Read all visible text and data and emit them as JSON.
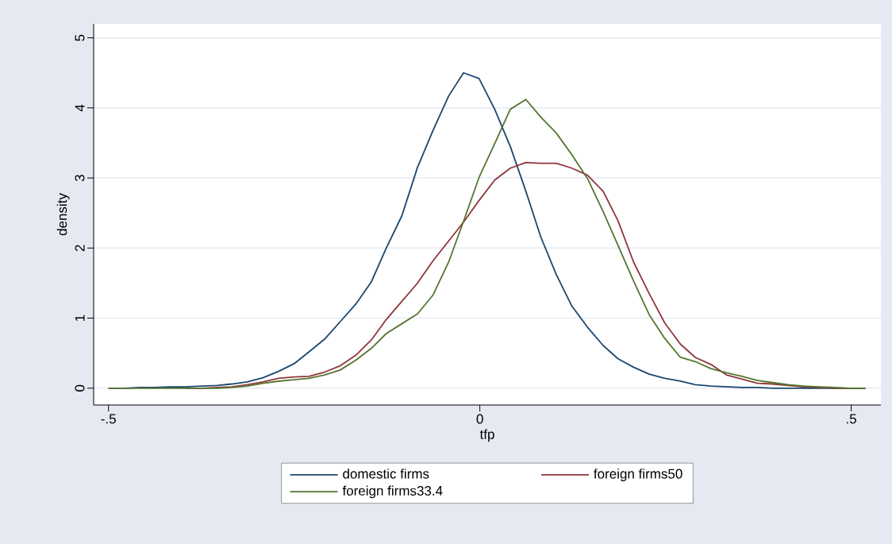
{
  "chart_data": {
    "type": "line",
    "xlabel": "tfp",
    "ylabel": "density",
    "x": [
      -0.5,
      -0.479,
      -0.458,
      -0.438,
      -0.417,
      -0.396,
      -0.375,
      -0.354,
      -0.334,
      -0.313,
      -0.292,
      -0.271,
      -0.25,
      -0.23,
      -0.209,
      -0.188,
      -0.167,
      -0.146,
      -0.126,
      -0.105,
      -0.084,
      -0.063,
      -0.042,
      -0.022,
      -0.001,
      0.02,
      0.041,
      0.062,
      0.082,
      0.103,
      0.124,
      0.145,
      0.166,
      0.186,
      0.207,
      0.228,
      0.249,
      0.27,
      0.29,
      0.311,
      0.332,
      0.353,
      0.374,
      0.394,
      0.415,
      0.436,
      0.457,
      0.478,
      0.498,
      0.519
    ],
    "series": [
      {
        "name": "domestic firms",
        "color": "#1a476f",
        "values": [
          0,
          0,
          0.01,
          0.01,
          0.02,
          0.02,
          0.03,
          0.04,
          0.06,
          0.09,
          0.15,
          0.24,
          0.35,
          0.52,
          0.7,
          0.95,
          1.2,
          1.52,
          2.0,
          2.46,
          3.15,
          3.68,
          4.17,
          4.5,
          4.42,
          3.98,
          3.45,
          2.81,
          2.16,
          1.62,
          1.17,
          0.87,
          0.61,
          0.42,
          0.3,
          0.2,
          0.14,
          0.1,
          0.05,
          0.03,
          0.02,
          0.01,
          0.01,
          0,
          0,
          0,
          0,
          0,
          0,
          0
        ]
      },
      {
        "name": "foreign firms50",
        "color": "#90353b",
        "values": [
          null,
          null,
          null,
          null,
          null,
          0,
          0,
          0.01,
          0.02,
          0.05,
          0.09,
          0.14,
          0.16,
          0.17,
          0.23,
          0.32,
          0.47,
          0.69,
          0.98,
          1.24,
          1.5,
          1.82,
          2.1,
          2.37,
          2.68,
          2.97,
          3.14,
          3.22,
          3.21,
          3.21,
          3.14,
          3.04,
          2.81,
          2.39,
          1.8,
          1.35,
          0.93,
          0.63,
          0.44,
          0.34,
          0.19,
          0.13,
          0.07,
          0.06,
          0.04,
          0.02,
          0.01,
          0,
          0,
          0
        ]
      },
      {
        "name": "foreign firms33.4",
        "color": "#55752f",
        "values": [
          0,
          0,
          0,
          0,
          0,
          0,
          0,
          0,
          0.01,
          0.03,
          0.07,
          0.1,
          0.12,
          0.14,
          0.19,
          0.26,
          0.4,
          0.57,
          0.78,
          0.92,
          1.06,
          1.33,
          1.8,
          2.38,
          3.01,
          3.49,
          3.98,
          4.12,
          3.87,
          3.64,
          3.33,
          2.99,
          2.52,
          2.04,
          1.53,
          1.05,
          0.71,
          0.44,
          0.38,
          0.28,
          0.22,
          0.17,
          0.11,
          0.08,
          0.05,
          0.03,
          0.02,
          0.01,
          0,
          0
        ]
      }
    ],
    "xlim": [
      -0.52,
      0.54
    ],
    "ylim": [
      -0.24,
      5.2
    ],
    "xticks": [
      {
        "value": -0.5,
        "label": "-.5"
      },
      0,
      {
        "value": 0.5,
        "label": ".5"
      }
    ],
    "yticks": [
      0,
      1,
      2,
      3,
      4,
      5
    ],
    "grid": "y",
    "legend": "bottom",
    "marker": "none",
    "line_style": "solid"
  }
}
